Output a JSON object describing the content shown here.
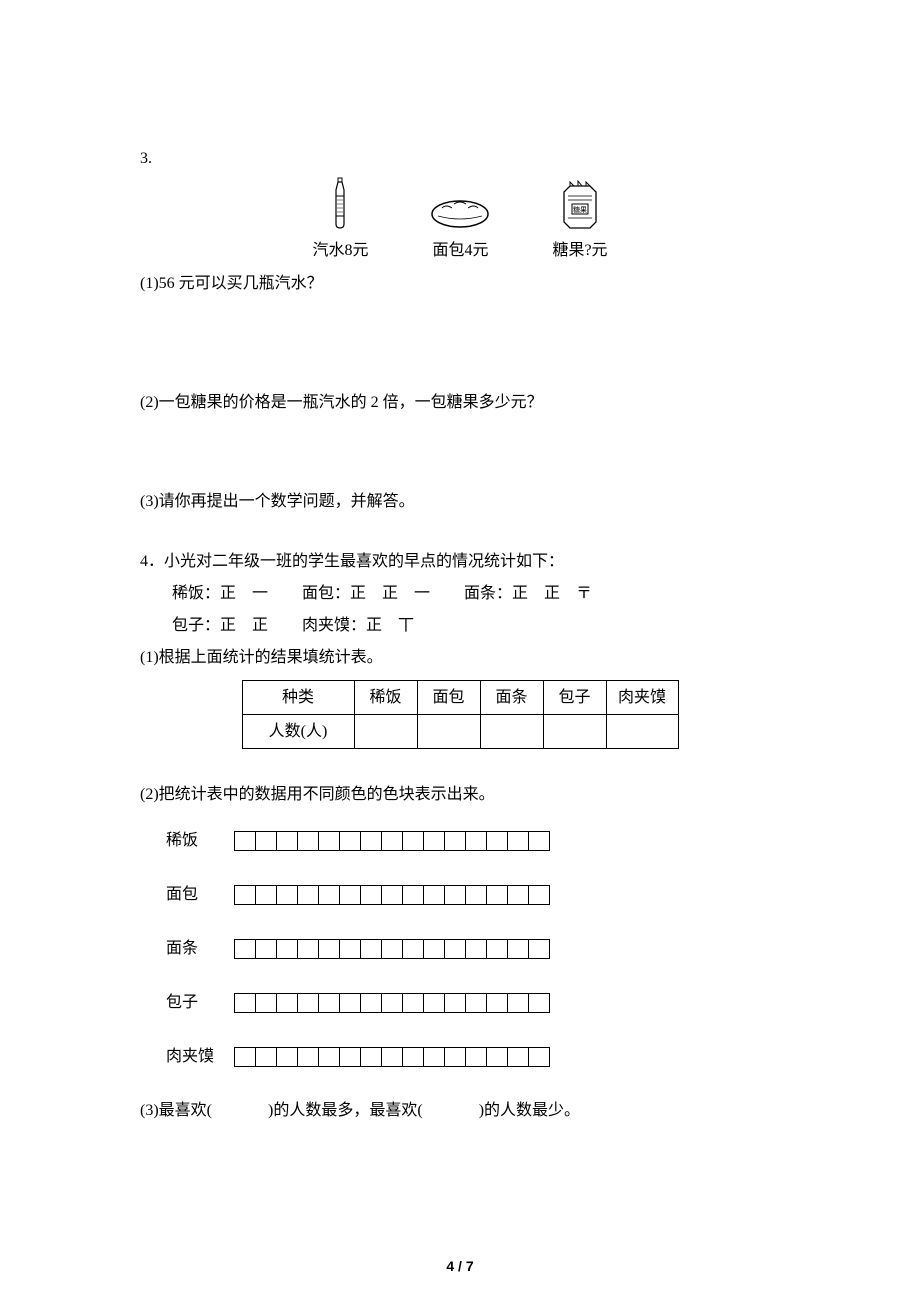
{
  "q3": {
    "number": "3.",
    "items": [
      {
        "label": "汽水8元"
      },
      {
        "label": "面包4元"
      },
      {
        "label": "糖果?元"
      }
    ],
    "sub1": "(1)56 元可以买几瓶汽水？",
    "sub2": "(2)一包糖果的价格是一瓶汽水的 2 倍，一包糖果多少元？",
    "sub3": "(3)请你再提出一个数学问题，并解答。"
  },
  "q4": {
    "intro": "4．小光对二年级一班的学生最喜欢的早点的情况统计如下：",
    "tally_line1": [
      "稀饭：正　一",
      "面包：正　正　一",
      "面条：正　正　〒"
    ],
    "tally_line2": [
      "包子：正　正",
      "肉夹馍：正　丅"
    ],
    "sub1": "(1)根据上面统计的结果填统计表。",
    "table": {
      "row1": [
        "种类",
        "稀饭",
        "面包",
        "面条",
        "包子",
        "肉夹馍"
      ],
      "row2": [
        "人数(人)",
        "",
        "",
        "",
        "",
        ""
      ]
    },
    "sub2": "(2)把统计表中的数据用不同颜色的色块表示出来。",
    "chart_labels": [
      "稀饭",
      "面包",
      "面条",
      "包子",
      "肉夹馍"
    ],
    "chart_cells": 15,
    "sub3_a": "(3)最喜欢(",
    "sub3_b": ")的人数最多，最喜欢(",
    "sub3_c": ")的人数最少。"
  },
  "page_number": "4 / 7"
}
